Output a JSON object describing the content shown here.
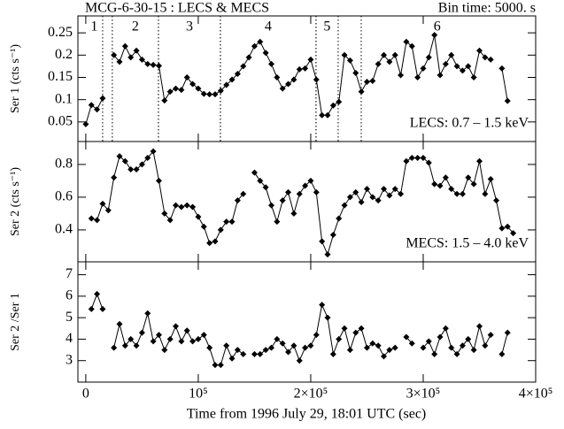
{
  "chart_data": {
    "type": "line",
    "title": "MCG-6-30-15 : LECS & MECS",
    "subtitle": "Bin time: 5000. s",
    "xlabel": "Time from 1996 July 29, 18:01 UTC (sec)",
    "xlim": [
      -7000,
      400000
    ],
    "xticks": [
      0,
      {
        "value": 100000,
        "label": "10⁵"
      },
      {
        "value": 200000,
        "label": "2×10⁵"
      },
      {
        "value": 300000,
        "label": "3×10⁵"
      },
      {
        "value": 400000,
        "label": "4×10⁵"
      }
    ],
    "x": [
      0,
      5000,
      10000,
      15000,
      20000,
      25000,
      30000,
      35000,
      40000,
      45000,
      50000,
      55000,
      60000,
      65000,
      70000,
      75000,
      80000,
      85000,
      90000,
      95000,
      100000,
      105000,
      110000,
      115000,
      120000,
      125000,
      130000,
      135000,
      140000,
      145000,
      150000,
      155000,
      160000,
      165000,
      170000,
      175000,
      180000,
      185000,
      190000,
      195000,
      200000,
      205000,
      210000,
      215000,
      220000,
      225000,
      230000,
      235000,
      240000,
      245000,
      250000,
      255000,
      260000,
      265000,
      270000,
      275000,
      280000,
      285000,
      290000,
      295000,
      300000,
      305000,
      310000,
      315000,
      320000,
      325000,
      330000,
      335000,
      340000,
      345000,
      350000,
      355000,
      360000,
      365000,
      370000,
      375000,
      380000
    ],
    "segments": [
      {
        "label": "1",
        "start": 0,
        "end": 15000
      },
      {
        "label": "2",
        "start": 23600,
        "end": 64600
      },
      {
        "label": "3",
        "start": 64600,
        "end": 119700
      },
      {
        "label": "4",
        "start": 119700,
        "end": 204700
      },
      {
        "label": "5",
        "start": 204700,
        "end": 224400
      },
      {
        "label": "6",
        "start": 244900,
        "end": 380000
      }
    ],
    "color": "#000000",
    "panels": [
      {
        "ylabel": "Ser 1 (cts s⁻¹)",
        "annotation": "LECS: 0.7 – 1.5 keV",
        "ylim": [
          0.006,
          0.288
        ],
        "yticks": [
          0.05,
          0.1,
          0.15,
          0.2,
          0.25
        ],
        "values": [
          0.045,
          0.088,
          0.078,
          0.103,
          null,
          0.2,
          0.185,
          0.22,
          0.195,
          0.21,
          0.19,
          0.18,
          0.178,
          0.176,
          0.098,
          0.118,
          0.125,
          0.122,
          0.15,
          0.135,
          0.125,
          0.113,
          0.112,
          0.112,
          0.12,
          0.133,
          0.145,
          0.158,
          0.175,
          0.195,
          0.22,
          0.23,
          0.205,
          0.18,
          0.15,
          0.125,
          0.135,
          0.145,
          0.168,
          0.17,
          0.19,
          0.145,
          0.065,
          0.065,
          0.087,
          0.095,
          0.2,
          0.188,
          0.16,
          0.118,
          0.14,
          0.142,
          0.18,
          0.2,
          0.185,
          0.2,
          0.155,
          0.23,
          0.22,
          0.15,
          0.17,
          0.195,
          0.245,
          0.155,
          0.18,
          0.2,
          0.175,
          0.165,
          0.175,
          0.15,
          0.21,
          0.195,
          0.19,
          null,
          0.17,
          0.097,
          null
        ]
      },
      {
        "ylabel": "Ser 2 (cts s⁻¹)",
        "annotation": "MECS: 1.5 – 4.0 keV",
        "ylim": [
          0.205,
          0.94
        ],
        "yticks": [
          0.4,
          0.6,
          0.8
        ],
        "values": [
          null,
          0.47,
          0.46,
          0.56,
          0.52,
          0.72,
          0.85,
          0.82,
          0.77,
          0.77,
          0.8,
          0.84,
          0.88,
          0.7,
          0.5,
          0.46,
          0.55,
          0.54,
          0.55,
          0.54,
          0.48,
          0.42,
          0.32,
          0.33,
          0.4,
          0.45,
          0.45,
          0.58,
          0.62,
          null,
          0.75,
          0.7,
          0.66,
          0.55,
          0.45,
          0.58,
          0.63,
          0.5,
          0.62,
          0.67,
          0.7,
          0.63,
          0.33,
          0.25,
          0.37,
          0.47,
          0.55,
          0.6,
          0.63,
          0.57,
          0.65,
          0.6,
          0.58,
          0.65,
          0.61,
          0.65,
          0.62,
          0.82,
          0.84,
          0.84,
          0.84,
          0.81,
          0.68,
          0.67,
          0.72,
          0.65,
          0.62,
          0.62,
          0.72,
          0.68,
          0.82,
          0.62,
          0.71,
          0.58,
          0.41,
          0.42,
          0.38
        ]
      },
      {
        "ylabel": "Ser 2 /Ser 1",
        "ylim": [
          2.0,
          7.6
        ],
        "yticks": [
          3,
          4,
          5,
          6,
          7
        ],
        "values": [
          null,
          5.4,
          6.1,
          5.4,
          null,
          3.6,
          4.7,
          3.7,
          4.0,
          3.7,
          4.3,
          5.2,
          3.9,
          4.2,
          3.5,
          4.0,
          4.6,
          3.9,
          4.4,
          3.9,
          4.0,
          4.2,
          3.6,
          2.8,
          2.8,
          3.7,
          3.1,
          3.5,
          3.3,
          null,
          3.3,
          3.3,
          3.5,
          3.6,
          4.0,
          3.8,
          3.4,
          3.7,
          3.0,
          3.6,
          3.7,
          4.2,
          5.6,
          5.0,
          3.3,
          4.0,
          4.5,
          3.5,
          4.3,
          4.5,
          3.6,
          3.8,
          3.7,
          3.2,
          3.5,
          3.6,
          null,
          4.1,
          3.8,
          null,
          3.6,
          3.9,
          3.3,
          4.1,
          4.5,
          3.6,
          3.3,
          3.7,
          4.0,
          3.5,
          4.6,
          3.7,
          4.2,
          null,
          3.3,
          4.3,
          null
        ]
      }
    ]
  }
}
